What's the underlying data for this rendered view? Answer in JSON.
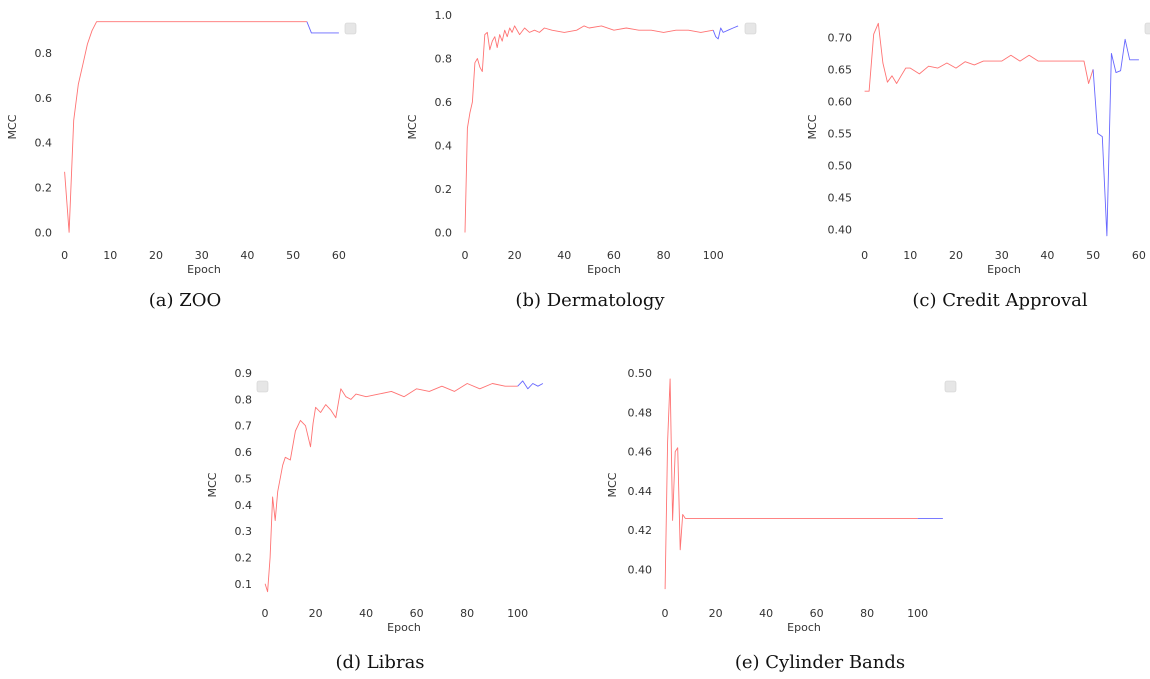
{
  "colors": {
    "series_1": "#ff5a5a",
    "series_2": "#4c4cff",
    "legend_box": "#e6e6e6"
  },
  "chart_data": [
    {
      "type": "line",
      "caption": "(a) ZOO",
      "xlabel": "Epoch",
      "ylabel": "MCC",
      "xlim": [
        -1,
        62
      ],
      "ylim": [
        -0.03,
        0.97
      ],
      "xticks": [
        0,
        10,
        20,
        30,
        40,
        50,
        60
      ],
      "yticks": [
        0.0,
        0.2,
        0.4,
        0.6,
        0.8
      ],
      "ytick_labels": [
        "0.0",
        "0.2",
        "0.4",
        "0.6",
        "0.8"
      ],
      "grid": false,
      "legend": "top-right",
      "series": [
        {
          "color": "#ff5a5a",
          "x": [
            0,
            1,
            2,
            3,
            4,
            5,
            6,
            7,
            10,
            20,
            30,
            40,
            50,
            53
          ],
          "y": [
            0.27,
            0.0,
            0.5,
            0.66,
            0.75,
            0.84,
            0.9,
            0.94,
            0.94,
            0.94,
            0.94,
            0.94,
            0.94,
            0.94
          ]
        },
        {
          "color": "#4c4cff",
          "x": [
            53,
            54,
            55,
            58,
            60
          ],
          "y": [
            0.94,
            0.89,
            0.89,
            0.89,
            0.89
          ]
        }
      ]
    },
    {
      "type": "line",
      "caption": "(b) Dermatology",
      "xlabel": "Epoch",
      "ylabel": "MCC",
      "xlim": [
        -2,
        114
      ],
      "ylim": [
        -0.03,
        1.0
      ],
      "xticks": [
        0,
        20,
        40,
        60,
        80,
        100
      ],
      "yticks": [
        0.0,
        0.2,
        0.4,
        0.6,
        0.8,
        1.0
      ],
      "ytick_labels": [
        "0.0",
        "0.2",
        "0.4",
        "0.6",
        "0.8",
        "1.0"
      ],
      "grid": false,
      "legend": "top-right",
      "series": [
        {
          "color": "#ff5a5a",
          "x": [
            0,
            1,
            2,
            3,
            4,
            5,
            6,
            7,
            8,
            9,
            10,
            11,
            12,
            13,
            14,
            15,
            16,
            17,
            18,
            19,
            20,
            22,
            24,
            26,
            28,
            30,
            32,
            35,
            40,
            45,
            48,
            50,
            55,
            60,
            65,
            70,
            75,
            80,
            85,
            90,
            95,
            100
          ],
          "y": [
            0.0,
            0.48,
            0.55,
            0.6,
            0.78,
            0.8,
            0.76,
            0.74,
            0.91,
            0.92,
            0.84,
            0.88,
            0.9,
            0.85,
            0.91,
            0.88,
            0.93,
            0.9,
            0.94,
            0.92,
            0.95,
            0.91,
            0.94,
            0.92,
            0.93,
            0.92,
            0.94,
            0.93,
            0.92,
            0.93,
            0.95,
            0.94,
            0.95,
            0.93,
            0.94,
            0.93,
            0.93,
            0.92,
            0.93,
            0.93,
            0.92,
            0.93
          ]
        },
        {
          "color": "#4c4cff",
          "x": [
            100,
            101,
            102,
            103,
            104,
            106,
            108,
            110
          ],
          "y": [
            0.93,
            0.9,
            0.89,
            0.94,
            0.92,
            0.93,
            0.94,
            0.95
          ]
        }
      ]
    },
    {
      "type": "line",
      "caption": "(c) Credit Approval",
      "xlabel": "Epoch",
      "ylabel": "MCC",
      "xlim": [
        -1,
        62
      ],
      "ylim": [
        0.385,
        0.735
      ],
      "xticks": [
        0,
        10,
        20,
        30,
        40,
        50,
        60
      ],
      "yticks": [
        0.4,
        0.45,
        0.5,
        0.55,
        0.6,
        0.65,
        0.7
      ],
      "ytick_labels": [
        "0.40",
        "0.45",
        "0.50",
        "0.55",
        "0.60",
        "0.65",
        "0.70"
      ],
      "grid": false,
      "legend": "top-right",
      "series": [
        {
          "color": "#ff5a5a",
          "x": [
            0,
            1,
            2,
            3,
            4,
            5,
            6,
            7,
            8,
            9,
            10,
            12,
            14,
            16,
            18,
            20,
            22,
            24,
            26,
            28,
            30,
            32,
            34,
            36,
            38,
            40,
            42,
            44,
            46,
            48,
            49,
            50
          ],
          "y": [
            0.616,
            0.616,
            0.705,
            0.722,
            0.66,
            0.63,
            0.64,
            0.628,
            0.64,
            0.652,
            0.652,
            0.643,
            0.655,
            0.652,
            0.66,
            0.652,
            0.662,
            0.657,
            0.663,
            0.663,
            0.663,
            0.672,
            0.663,
            0.672,
            0.663,
            0.663,
            0.663,
            0.663,
            0.663,
            0.663,
            0.628,
            0.65
          ]
        },
        {
          "color": "#4c4cff",
          "x": [
            50,
            51,
            52,
            53,
            54,
            55,
            56,
            57,
            58,
            59,
            60
          ],
          "y": [
            0.65,
            0.55,
            0.545,
            0.39,
            0.675,
            0.645,
            0.648,
            0.697,
            0.665,
            0.665,
            0.665
          ]
        }
      ]
    },
    {
      "type": "line",
      "caption": "(d) Libras",
      "xlabel": "Epoch",
      "ylabel": "MCC",
      "xlim": [
        -2,
        112
      ],
      "ylim": [
        0.05,
        0.9
      ],
      "xticks": [
        0,
        20,
        40,
        60,
        80,
        100
      ],
      "yticks": [
        0.1,
        0.2,
        0.3,
        0.4,
        0.5,
        0.6,
        0.7,
        0.8,
        0.9
      ],
      "ytick_labels": [
        "0.1",
        "0.2",
        "0.3",
        "0.4",
        "0.5",
        "0.6",
        "0.7",
        "0.8",
        "0.9"
      ],
      "grid": false,
      "legend": "top-left",
      "series": [
        {
          "color": "#ff5a5a",
          "x": [
            0,
            1,
            2,
            3,
            4,
            5,
            6,
            7,
            8,
            10,
            12,
            14,
            16,
            18,
            19,
            20,
            22,
            24,
            26,
            28,
            30,
            32,
            34,
            36,
            40,
            45,
            50,
            55,
            60,
            65,
            70,
            75,
            80,
            85,
            90,
            95,
            100
          ],
          "y": [
            0.1,
            0.07,
            0.2,
            0.43,
            0.34,
            0.45,
            0.5,
            0.55,
            0.58,
            0.57,
            0.68,
            0.72,
            0.7,
            0.62,
            0.71,
            0.77,
            0.75,
            0.78,
            0.76,
            0.73,
            0.84,
            0.81,
            0.8,
            0.82,
            0.81,
            0.82,
            0.83,
            0.81,
            0.84,
            0.83,
            0.85,
            0.83,
            0.86,
            0.84,
            0.86,
            0.85,
            0.85
          ]
        },
        {
          "color": "#4c4cff",
          "x": [
            100,
            102,
            104,
            106,
            108,
            110
          ],
          "y": [
            0.85,
            0.87,
            0.84,
            0.86,
            0.85,
            0.86
          ]
        }
      ]
    },
    {
      "type": "line",
      "caption": "(e) Cylinder Bands",
      "xlabel": "Epoch",
      "ylabel": "MCC",
      "xlim": [
        -2,
        112
      ],
      "ylim": [
        0.386,
        0.5
      ],
      "xticks": [
        0,
        20,
        40,
        60,
        80,
        100
      ],
      "yticks": [
        0.4,
        0.42,
        0.44,
        0.46,
        0.48,
        0.5
      ],
      "ytick_labels": [
        "0.40",
        "0.42",
        "0.44",
        "0.46",
        "0.48",
        "0.50"
      ],
      "grid": false,
      "legend": "top-right",
      "series": [
        {
          "color": "#ff5a5a",
          "x": [
            0,
            1,
            2,
            3,
            4,
            5,
            6,
            7,
            8,
            9,
            10,
            20,
            40,
            60,
            80,
            100
          ],
          "y": [
            0.39,
            0.465,
            0.497,
            0.425,
            0.46,
            0.462,
            0.41,
            0.428,
            0.426,
            0.426,
            0.426,
            0.426,
            0.426,
            0.426,
            0.426,
            0.426
          ]
        },
        {
          "color": "#4c4cff",
          "x": [
            100,
            105,
            110
          ],
          "y": [
            0.426,
            0.426,
            0.426
          ]
        }
      ]
    }
  ]
}
